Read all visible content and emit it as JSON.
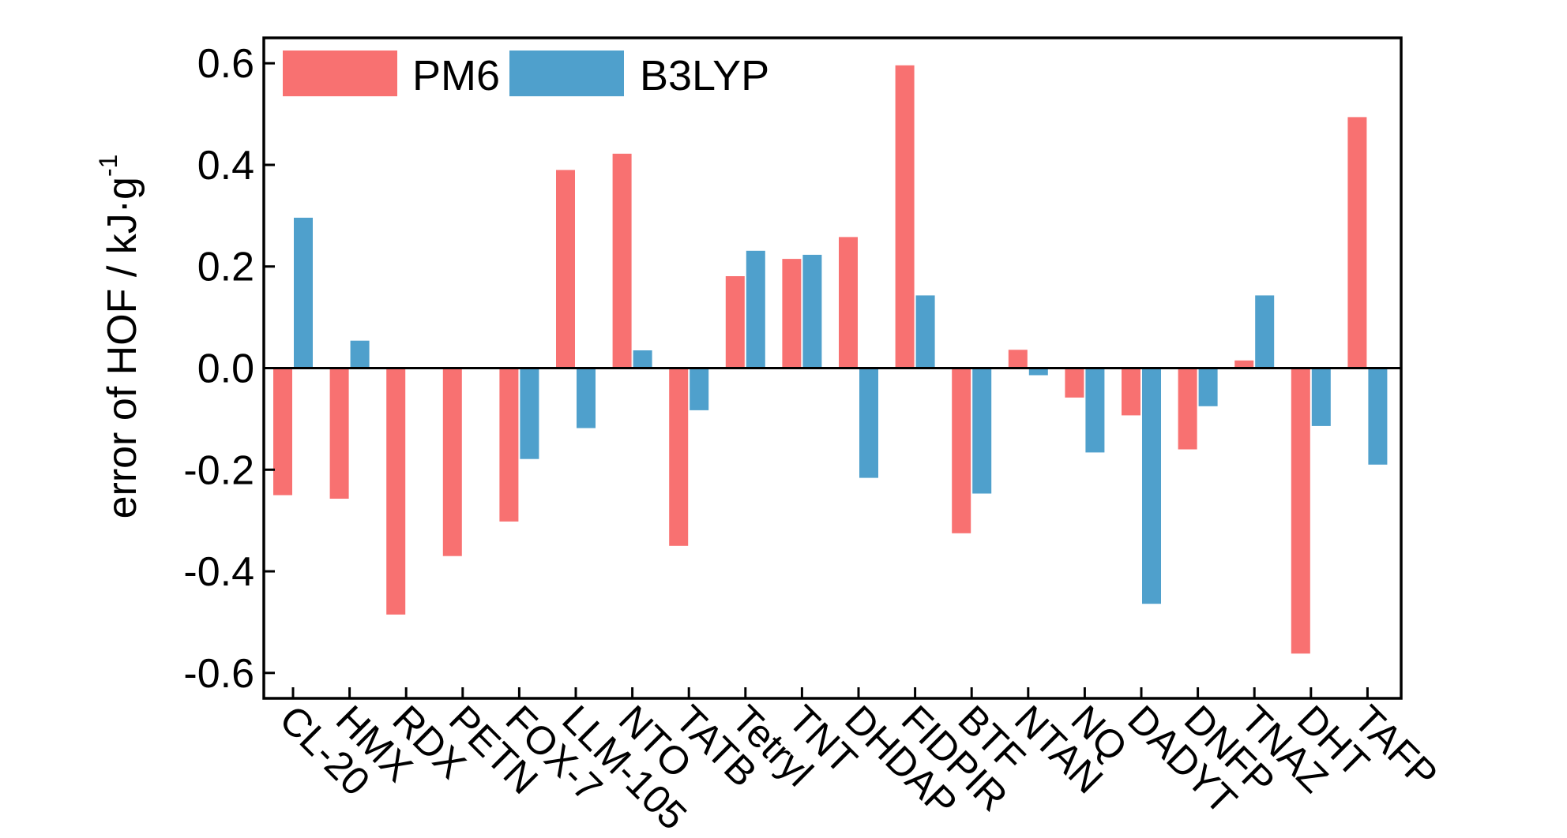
{
  "chart_data": {
    "type": "bar",
    "title": "",
    "xlabel": "",
    "ylabel": "error of HOF / kJ·g",
    "ylabel_superscript": "-1",
    "ylim": [
      -0.65,
      0.65
    ],
    "yticks": [
      -0.6,
      -0.4,
      -0.2,
      0.0,
      0.2,
      0.4,
      0.6
    ],
    "ytick_labels": [
      "-0.6",
      "-0.4",
      "-0.2",
      "0.0",
      "0.2",
      "0.4",
      "0.6"
    ],
    "grid": false,
    "legend_position": "top-left",
    "categories": [
      "CL-20",
      "HMX",
      "RDX",
      "PETN",
      "FOX-7",
      "LLM-105",
      "NTO",
      "TATB",
      "Tetryl",
      "TNT",
      "DHDAP",
      "FIDPIR",
      "BTF",
      "NTAN",
      "NQ",
      "DADYT",
      "DNFP",
      "TNAZ",
      "DHT",
      "TAFP"
    ],
    "series": [
      {
        "name": "PM6",
        "color": "#f87171",
        "values": [
          -0.25,
          -0.257,
          -0.485,
          -0.37,
          -0.302,
          0.39,
          0.422,
          -0.35,
          0.181,
          0.215,
          0.258,
          0.596,
          -0.325,
          0.036,
          -0.058,
          -0.093,
          -0.16,
          0.015,
          -0.562,
          0.494
        ]
      },
      {
        "name": "B3LYP",
        "color": "#4fa0cc",
        "values": [
          0.296,
          0.054,
          0.0,
          0.002,
          -0.179,
          -0.118,
          0.035,
          -0.083,
          0.231,
          0.223,
          -0.216,
          0.143,
          -0.247,
          -0.014,
          -0.166,
          -0.464,
          -0.075,
          0.143,
          -0.114,
          -0.19
        ]
      }
    ]
  }
}
